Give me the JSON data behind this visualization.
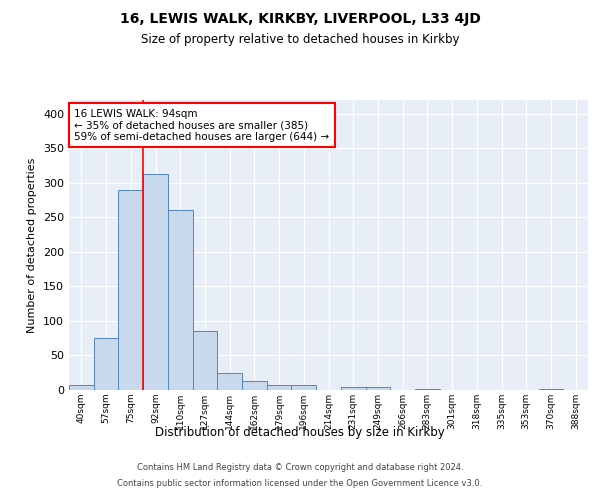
{
  "title1": "16, LEWIS WALK, KIRKBY, LIVERPOOL, L33 4JD",
  "title2": "Size of property relative to detached houses in Kirkby",
  "xlabel": "Distribution of detached houses by size in Kirkby",
  "ylabel": "Number of detached properties",
  "bin_labels": [
    "40sqm",
    "57sqm",
    "75sqm",
    "92sqm",
    "110sqm",
    "127sqm",
    "144sqm",
    "162sqm",
    "179sqm",
    "196sqm",
    "214sqm",
    "231sqm",
    "249sqm",
    "266sqm",
    "283sqm",
    "301sqm",
    "318sqm",
    "335sqm",
    "353sqm",
    "370sqm",
    "388sqm"
  ],
  "bar_heights": [
    7,
    75,
    290,
    313,
    260,
    85,
    25,
    13,
    7,
    7,
    0,
    5,
    5,
    0,
    2,
    0,
    0,
    0,
    0,
    2,
    0
  ],
  "bar_color": "#c8d8ed",
  "bar_edge_color": "#5585bb",
  "red_line_x": 2.5,
  "annotation_text": "16 LEWIS WALK: 94sqm\n← 35% of detached houses are smaller (385)\n59% of semi-detached houses are larger (644) →",
  "annotation_box_color": "white",
  "annotation_box_edge_color": "red",
  "ylim": [
    0,
    420
  ],
  "yticks": [
    0,
    50,
    100,
    150,
    200,
    250,
    300,
    350,
    400
  ],
  "footer1": "Contains HM Land Registry data © Crown copyright and database right 2024.",
  "footer2": "Contains public sector information licensed under the Open Government Licence v3.0.",
  "plot_bg_color": "#e8eef7",
  "grid_color": "white"
}
